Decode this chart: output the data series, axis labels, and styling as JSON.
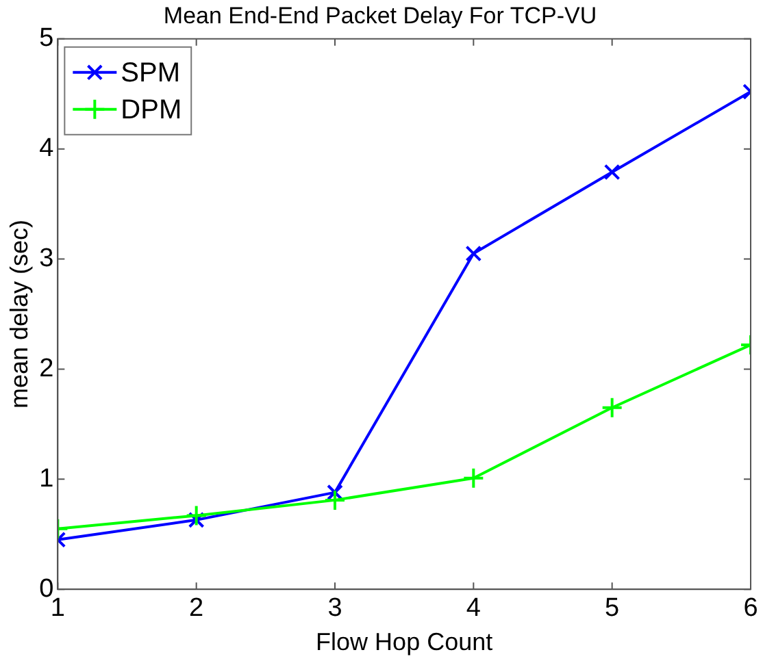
{
  "chart_data": {
    "type": "line",
    "title": "Mean End-End Packet Delay For TCP-VU",
    "xlabel": "Flow Hop Count",
    "ylabel": "mean delay (sec)",
    "x": [
      1,
      2,
      3,
      4,
      5,
      6
    ],
    "series": [
      {
        "name": "SPM",
        "color": "#0000ff",
        "marker": "cross",
        "values": [
          0.45,
          0.63,
          0.88,
          3.05,
          3.79,
          4.52
        ]
      },
      {
        "name": "DPM",
        "color": "#00ff00",
        "marker": "plus",
        "values": [
          0.55,
          0.67,
          0.81,
          1.01,
          1.65,
          2.22
        ]
      }
    ],
    "xlim": [
      1,
      6
    ],
    "xticks": [
      1,
      2,
      3,
      4,
      5,
      6
    ],
    "ylim": [
      0,
      5
    ],
    "yticks": [
      0,
      1,
      2,
      3,
      4,
      5
    ],
    "grid": false,
    "legend": "top left"
  }
}
